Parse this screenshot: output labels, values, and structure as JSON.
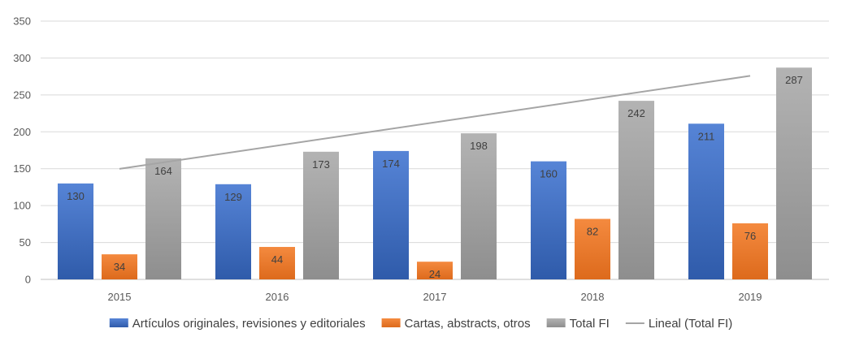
{
  "chart_data": {
    "type": "bar",
    "categories": [
      "2015",
      "2016",
      "2017",
      "2018",
      "2019"
    ],
    "series": [
      {
        "name": "Artículos originales, revisiones y editoriales",
        "values": [
          130,
          129,
          174,
          160,
          211
        ],
        "color": "#4472C4"
      },
      {
        "name": "Cartas, abstracts, otros",
        "values": [
          34,
          44,
          24,
          82,
          76
        ],
        "color": "#ED7D31"
      },
      {
        "name": "Total FI",
        "values": [
          164,
          173,
          198,
          242,
          287
        ],
        "color": "#A5A5A5"
      }
    ],
    "trendline": {
      "name": "Lineal (Total FI)",
      "type": "linear",
      "of_series": "Total FI",
      "color": "#A5A5A5"
    },
    "yticks": [
      "0",
      "50",
      "100",
      "150",
      "200",
      "250",
      "300",
      "350"
    ],
    "ylim": [
      0,
      350
    ],
    "grid": true,
    "legend_position": "bottom",
    "title": "",
    "xlabel": "",
    "ylabel": ""
  }
}
